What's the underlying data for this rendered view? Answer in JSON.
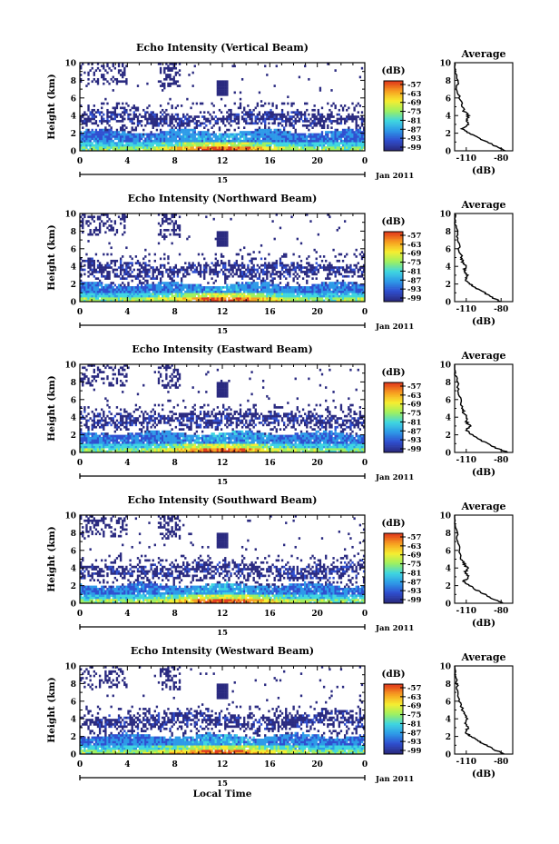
{
  "figure": {
    "x_axis_label": "Local Time",
    "date_label": "Jan 2011",
    "day_label": "15",
    "y_axis_label": "Height (km)",
    "colorbar_unit": "(dB)",
    "profile_title": "Average",
    "profile_xlabel": "(dB)"
  },
  "chart_data": [
    {
      "type": "heatmap",
      "title": "Echo Intensity (Vertical Beam)",
      "x_ticks": [
        "0",
        "4",
        "8",
        "12",
        "16",
        "20",
        "0"
      ],
      "xlim": [
        0,
        24
      ],
      "x_unit": "local hour",
      "ylabel": "Height (km)",
      "y_ticks": [
        "0",
        "2",
        "4",
        "6",
        "8",
        "10"
      ],
      "ylim": [
        0,
        10
      ],
      "colorbar": {
        "label": "(dB)",
        "ticks": [
          "-57",
          "-63",
          "-69",
          "-75",
          "-81",
          "-87",
          "-93",
          "-99"
        ],
        "range": [
          -99,
          -57
        ],
        "colors": [
          "#2a2a80",
          "#2f4fd0",
          "#2d9ae8",
          "#3fd6e0",
          "#9ef060",
          "#f6ee30",
          "#f7a020",
          "#e23a1a"
        ]
      },
      "structure": {
        "low_layer_km": [
          0,
          2.2
        ],
        "mid_layer_km": [
          2.8,
          4.2
        ],
        "upper_sparse_km": [
          4.5,
          10
        ],
        "peak_hour": 12
      },
      "profile": {
        "title": "Average",
        "xlabel": "(dB)",
        "x_ticks": [
          "-110",
          "-80"
        ],
        "xlim": [
          -120,
          -70
        ],
        "height_km": [
          0,
          0.5,
          1,
          1.5,
          2,
          2.5,
          3,
          3.5,
          4,
          4.5,
          5,
          6,
          7,
          8,
          9,
          10
        ],
        "value_db": [
          -76,
          -84,
          -92,
          -100,
          -108,
          -113,
          -108,
          -110,
          -108,
          -112,
          -113,
          -116,
          -118,
          -117,
          -120,
          -120
        ]
      }
    },
    {
      "type": "heatmap",
      "title": "Echo Intensity (Northward Beam)",
      "x_ticks": [
        "0",
        "4",
        "8",
        "12",
        "16",
        "20",
        "0"
      ],
      "xlim": [
        0,
        24
      ],
      "x_unit": "local hour",
      "ylabel": "Height (km)",
      "y_ticks": [
        "0",
        "2",
        "4",
        "6",
        "8",
        "10"
      ],
      "ylim": [
        0,
        10
      ],
      "colorbar": {
        "label": "(dB)",
        "ticks": [
          "-57",
          "-63",
          "-69",
          "-75",
          "-81",
          "-87",
          "-93",
          "-99"
        ],
        "range": [
          -99,
          -57
        ],
        "colors": [
          "#2a2a80",
          "#2f4fd0",
          "#2d9ae8",
          "#3fd6e0",
          "#9ef060",
          "#f6ee30",
          "#f7a020",
          "#e23a1a"
        ]
      },
      "structure": {
        "low_layer_km": [
          0,
          2.0
        ],
        "mid_layer_km": [
          2.6,
          4.4
        ],
        "upper_sparse_km": [
          4.6,
          10
        ],
        "peak_hour": 12
      },
      "profile": {
        "title": "Average",
        "xlabel": "(dB)",
        "x_ticks": [
          "-110",
          "-80"
        ],
        "xlim": [
          -120,
          -70
        ],
        "height_km": [
          0,
          0.5,
          1,
          1.5,
          2,
          2.5,
          3,
          3.5,
          4,
          4.5,
          5,
          6,
          7,
          8,
          9,
          10
        ],
        "value_db": [
          -80,
          -88,
          -94,
          -101,
          -107,
          -111,
          -109,
          -112,
          -110,
          -113,
          -114,
          -116,
          -117,
          -118,
          -120,
          -120
        ]
      }
    },
    {
      "type": "heatmap",
      "title": "Echo Intensity (Eastward Beam)",
      "x_ticks": [
        "0",
        "4",
        "8",
        "12",
        "16",
        "20",
        "0"
      ],
      "xlim": [
        0,
        24
      ],
      "x_unit": "local hour",
      "ylabel": "Height (km)",
      "y_ticks": [
        "0",
        "2",
        "4",
        "6",
        "8",
        "10"
      ],
      "ylim": [
        0,
        10
      ],
      "colorbar": {
        "label": "(dB)",
        "ticks": [
          "-57",
          "-63",
          "-69",
          "-75",
          "-81",
          "-87",
          "-93",
          "-99"
        ],
        "range": [
          -99,
          -57
        ],
        "colors": [
          "#2a2a80",
          "#2f4fd0",
          "#2d9ae8",
          "#3fd6e0",
          "#9ef060",
          "#f6ee30",
          "#f7a020",
          "#e23a1a"
        ]
      },
      "structure": {
        "low_layer_km": [
          0,
          2.2
        ],
        "mid_layer_km": [
          2.8,
          4.4
        ],
        "upper_sparse_km": [
          4.6,
          10
        ],
        "peak_hour": 12
      },
      "profile": {
        "title": "Average",
        "xlabel": "(dB)",
        "x_ticks": [
          "-110",
          "-80"
        ],
        "xlim": [
          -120,
          -70
        ],
        "height_km": [
          0,
          0.5,
          1,
          1.5,
          2,
          2.5,
          3,
          3.5,
          4,
          4.5,
          5,
          6,
          7,
          8,
          9,
          10
        ],
        "value_db": [
          -74,
          -84,
          -92,
          -99,
          -105,
          -110,
          -107,
          -110,
          -109,
          -112,
          -113,
          -115,
          -117,
          -117,
          -120,
          -120
        ]
      }
    },
    {
      "type": "heatmap",
      "title": "Echo Intensity (Southward Beam)",
      "x_ticks": [
        "0",
        "4",
        "8",
        "12",
        "16",
        "20",
        "0"
      ],
      "xlim": [
        0,
        24
      ],
      "x_unit": "local hour",
      "ylabel": "Height (km)",
      "y_ticks": [
        "0",
        "2",
        "4",
        "6",
        "8",
        "10"
      ],
      "ylim": [
        0,
        10
      ],
      "colorbar": {
        "label": "(dB)",
        "ticks": [
          "-57",
          "-63",
          "-69",
          "-75",
          "-81",
          "-87",
          "-93",
          "-99"
        ],
        "range": [
          -99,
          -57
        ],
        "colors": [
          "#2a2a80",
          "#2f4fd0",
          "#2d9ae8",
          "#3fd6e0",
          "#9ef060",
          "#f6ee30",
          "#f7a020",
          "#e23a1a"
        ]
      },
      "structure": {
        "low_layer_km": [
          0,
          2.1
        ],
        "mid_layer_km": [
          2.7,
          4.4
        ],
        "upper_sparse_km": [
          4.6,
          10
        ],
        "peak_hour": 12
      },
      "profile": {
        "title": "Average",
        "xlabel": "(dB)",
        "x_ticks": [
          "-110",
          "-80"
        ],
        "xlim": [
          -120,
          -70
        ],
        "height_km": [
          0,
          0.5,
          1,
          1.5,
          2,
          2.5,
          3,
          3.5,
          4,
          4.5,
          5,
          6,
          7,
          8,
          9,
          10
        ],
        "value_db": [
          -78,
          -87,
          -94,
          -101,
          -107,
          -112,
          -108,
          -111,
          -109,
          -112,
          -114,
          -116,
          -117,
          -118,
          -121,
          -120
        ]
      }
    },
    {
      "type": "heatmap",
      "title": "Echo Intensity (Westward Beam)",
      "x_ticks": [
        "0",
        "4",
        "8",
        "12",
        "16",
        "20",
        "0"
      ],
      "xlim": [
        0,
        24
      ],
      "x_unit": "local hour",
      "ylabel": "Height (km)",
      "y_ticks": [
        "0",
        "2",
        "4",
        "6",
        "8",
        "10"
      ],
      "ylim": [
        0,
        10
      ],
      "colorbar": {
        "label": "(dB)",
        "ticks": [
          "-57",
          "-63",
          "-69",
          "-75",
          "-81",
          "-87",
          "-93",
          "-99"
        ],
        "range": [
          -99,
          -57
        ],
        "colors": [
          "#2a2a80",
          "#2f4fd0",
          "#2d9ae8",
          "#3fd6e0",
          "#9ef060",
          "#f6ee30",
          "#f7a020",
          "#e23a1a"
        ]
      },
      "structure": {
        "low_layer_km": [
          0,
          2.1
        ],
        "mid_layer_km": [
          2.8,
          4.5
        ],
        "upper_sparse_km": [
          4.6,
          10
        ],
        "peak_hour": 12
      },
      "profile": {
        "title": "Average",
        "xlabel": "(dB)",
        "x_ticks": [
          "-110",
          "-80"
        ],
        "xlim": [
          -120,
          -70
        ],
        "height_km": [
          0,
          0.5,
          1,
          1.5,
          2,
          2.5,
          3,
          3.5,
          4,
          4.5,
          5,
          6,
          7,
          8,
          9,
          10
        ],
        "value_db": [
          -77,
          -86,
          -93,
          -100,
          -106,
          -111,
          -108,
          -111,
          -109,
          -112,
          -113,
          -116,
          -117,
          -118,
          -120,
          -120
        ]
      }
    }
  ]
}
